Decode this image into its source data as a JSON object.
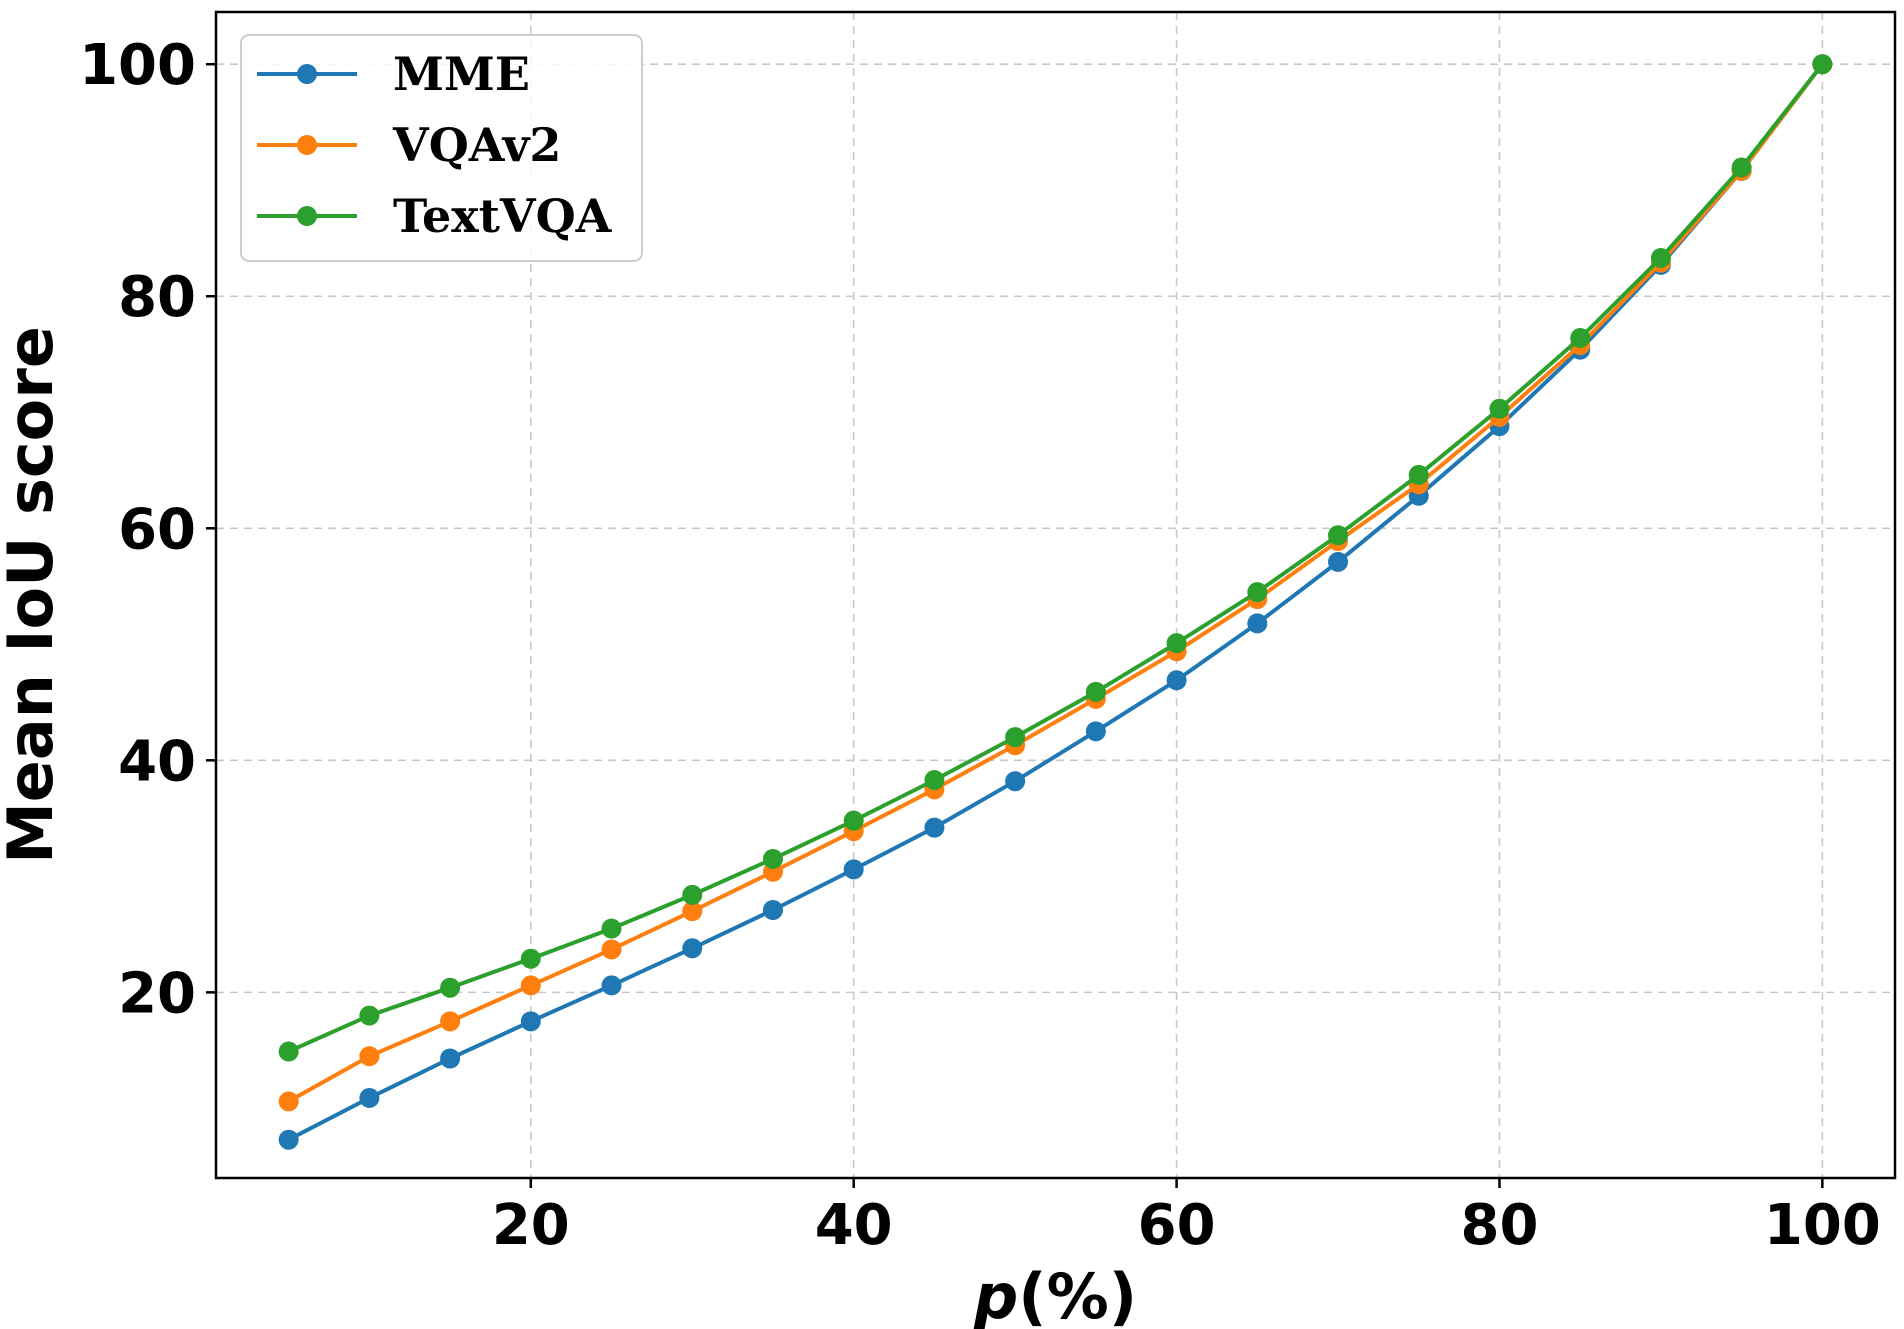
{
  "chart_data": {
    "type": "line",
    "title": "",
    "xlabel_italic": "p",
    "xlabel_rest": "(%)",
    "ylabel": "Mean IoU score",
    "xlim": [
      0.5,
      104.5
    ],
    "ylim": [
      4,
      104.5
    ],
    "xticks": [
      20,
      40,
      60,
      80,
      100
    ],
    "yticks": [
      20,
      40,
      60,
      80,
      100
    ],
    "grid": true,
    "legend_position": "top-left",
    "x": [
      5,
      10,
      15,
      20,
      25,
      30,
      35,
      40,
      45,
      50,
      55,
      60,
      65,
      70,
      75,
      80,
      85,
      90,
      95,
      100
    ],
    "series": [
      {
        "name": "MME",
        "color": "#1f77b4",
        "values": [
          7.3,
          10.9,
          14.3,
          17.5,
          20.6,
          23.8,
          27.1,
          30.6,
          34.2,
          38.2,
          42.5,
          46.9,
          51.8,
          57.1,
          62.8,
          68.8,
          75.4,
          82.7,
          90.8,
          100
        ]
      },
      {
        "name": "VQAv2",
        "color": "#ff7f0e",
        "values": [
          10.6,
          14.5,
          17.5,
          20.6,
          23.7,
          27.0,
          30.4,
          33.9,
          37.5,
          41.3,
          45.3,
          49.4,
          53.9,
          58.9,
          63.8,
          69.6,
          75.8,
          82.9,
          90.8,
          100
        ]
      },
      {
        "name": "TextVQA",
        "color": "#2ca02c",
        "values": [
          14.9,
          18.0,
          20.4,
          22.9,
          25.5,
          28.4,
          31.5,
          34.8,
          38.3,
          42.0,
          45.9,
          50.1,
          54.5,
          59.4,
          64.6,
          70.3,
          76.4,
          83.3,
          91.1,
          100
        ]
      }
    ]
  }
}
